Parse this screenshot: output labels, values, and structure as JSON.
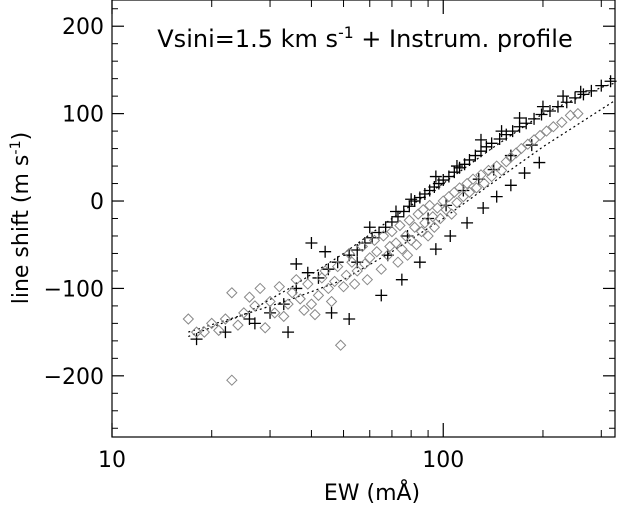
{
  "chart_data": {
    "type": "scatter",
    "title": "Vsini=1.5 km s⁻¹ + Instrum. profile",
    "xlabel": "EW (mÅ)",
    "ylabel": "line shift (m s⁻¹)",
    "xscale": "log",
    "xlim": [
      10,
      330
    ],
    "ylim": [
      -270,
      230
    ],
    "xticks": [
      10,
      100
    ],
    "xtick_labels": [
      "10",
      "100"
    ],
    "yticks": [
      -200,
      -100,
      0,
      100,
      200
    ],
    "ytick_labels": [
      "−200",
      "−100",
      "0",
      "100",
      "200"
    ],
    "grid": false,
    "legend": "none",
    "series": [
      {
        "marker": "plus",
        "color": "#000000",
        "points": [
          [
            18,
            -158
          ],
          [
            22,
            -150
          ],
          [
            27,
            -140
          ],
          [
            30,
            -128
          ],
          [
            33,
            -118
          ],
          [
            36,
            -100
          ],
          [
            39,
            -82
          ],
          [
            42,
            -88
          ],
          [
            45,
            -78
          ],
          [
            48,
            -70
          ],
          [
            52,
            -62
          ],
          [
            55,
            -56
          ],
          [
            58,
            -48
          ],
          [
            61,
            -42
          ],
          [
            64,
            -36
          ],
          [
            67,
            -30
          ],
          [
            70,
            -24
          ],
          [
            73,
            -18
          ],
          [
            76,
            -12
          ],
          [
            79,
            -6
          ],
          [
            82,
            0
          ],
          [
            85,
            4
          ],
          [
            88,
            8
          ],
          [
            91,
            12
          ],
          [
            94,
            16
          ],
          [
            97,
            20
          ],
          [
            100,
            24
          ],
          [
            104,
            28
          ],
          [
            108,
            33
          ],
          [
            112,
            38
          ],
          [
            116,
            42
          ],
          [
            120,
            47
          ],
          [
            125,
            52
          ],
          [
            130,
            57
          ],
          [
            135,
            62
          ],
          [
            140,
            66
          ],
          [
            148,
            71
          ],
          [
            155,
            76
          ],
          [
            162,
            80
          ],
          [
            170,
            85
          ],
          [
            178,
            89
          ],
          [
            188,
            94
          ],
          [
            198,
            99
          ],
          [
            210,
            103
          ],
          [
            222,
            108
          ],
          [
            236,
            113
          ],
          [
            250,
            118
          ],
          [
            265,
            122
          ],
          [
            280,
            126
          ],
          [
            300,
            132
          ],
          [
            320,
            137
          ],
          [
            40,
            -48
          ],
          [
            44,
            -58
          ],
          [
            36,
            -72
          ],
          [
            60,
            -30
          ],
          [
            72,
            -12
          ],
          [
            80,
            2
          ],
          [
            95,
            28
          ],
          [
            110,
            40
          ],
          [
            130,
            70
          ],
          [
            150,
            80
          ],
          [
            170,
            95
          ],
          [
            200,
            108
          ],
          [
            230,
            120
          ],
          [
            260,
            125
          ],
          [
            26,
            -135
          ],
          [
            34,
            -150
          ],
          [
            46,
            -128
          ],
          [
            52,
            -135
          ],
          [
            65,
            -108
          ],
          [
            75,
            -90
          ],
          [
            85,
            -70
          ],
          [
            95,
            -55
          ],
          [
            105,
            -40
          ],
          [
            118,
            -25
          ],
          [
            132,
            -8
          ],
          [
            145,
            5
          ],
          [
            160,
            18
          ],
          [
            176,
            32
          ],
          [
            195,
            44
          ],
          [
            55,
            -70
          ],
          [
            68,
            -62
          ],
          [
            78,
            -40
          ],
          [
            90,
            -20
          ],
          [
            102,
            -5
          ],
          [
            115,
            12
          ],
          [
            128,
            25
          ],
          [
            142,
            36
          ],
          [
            160,
            52
          ],
          [
            185,
            64
          ]
        ]
      },
      {
        "marker": "diamond",
        "color": "#888888",
        "points": [
          [
            17,
            -135
          ],
          [
            18,
            -150
          ],
          [
            19,
            -150
          ],
          [
            20,
            -140
          ],
          [
            21,
            -148
          ],
          [
            22,
            -135
          ],
          [
            23,
            -105
          ],
          [
            23,
            -205
          ],
          [
            24,
            -142
          ],
          [
            25,
            -128
          ],
          [
            26,
            -110
          ],
          [
            27,
            -120
          ],
          [
            28,
            -100
          ],
          [
            29,
            -145
          ],
          [
            30,
            -115
          ],
          [
            31,
            -128
          ],
          [
            32,
            -98
          ],
          [
            33,
            -132
          ],
          [
            34,
            -118
          ],
          [
            35,
            -105
          ],
          [
            36,
            -90
          ],
          [
            37,
            -112
          ],
          [
            38,
            -125
          ],
          [
            39,
            -95
          ],
          [
            40,
            -118
          ],
          [
            41,
            -130
          ],
          [
            42,
            -108
          ],
          [
            43,
            -88
          ],
          [
            44,
            -80
          ],
          [
            45,
            -100
          ],
          [
            46,
            -115
          ],
          [
            47,
            -92
          ],
          [
            48,
            -75
          ],
          [
            49,
            -165
          ],
          [
            50,
            -98
          ],
          [
            51,
            -85
          ],
          [
            52,
            -60
          ],
          [
            53,
            -70
          ],
          [
            54,
            -95
          ],
          [
            55,
            -80
          ],
          [
            57,
            -52
          ],
          [
            58,
            -72
          ],
          [
            59,
            -90
          ],
          [
            60,
            -65
          ],
          [
            62,
            -45
          ],
          [
            63,
            -58
          ],
          [
            65,
            -78
          ],
          [
            66,
            -40
          ],
          [
            68,
            -62
          ],
          [
            69,
            -52
          ],
          [
            70,
            -35
          ],
          [
            72,
            -48
          ],
          [
            73,
            -70
          ],
          [
            74,
            -28
          ],
          [
            75,
            -55
          ],
          [
            77,
            -40
          ],
          [
            78,
            -62
          ],
          [
            79,
            -22
          ],
          [
            80,
            -45
          ],
          [
            82,
            -30
          ],
          [
            83,
            -50
          ],
          [
            84,
            -15
          ],
          [
            86,
            -35
          ],
          [
            87,
            -10
          ],
          [
            88,
            -25
          ],
          [
            90,
            -40
          ],
          [
            91,
            -5
          ],
          [
            93,
            -18
          ],
          [
            94,
            -30
          ],
          [
            96,
            -8
          ],
          [
            98,
            -20
          ],
          [
            100,
            0
          ],
          [
            102,
            -10
          ],
          [
            104,
            5
          ],
          [
            106,
            -15
          ],
          [
            108,
            10
          ],
          [
            110,
            -2
          ],
          [
            112,
            15
          ],
          [
            115,
            5
          ],
          [
            118,
            20
          ],
          [
            120,
            10
          ],
          [
            123,
            25
          ],
          [
            126,
            15
          ],
          [
            130,
            30
          ],
          [
            133,
            20
          ],
          [
            137,
            35
          ],
          [
            140,
            28
          ],
          [
            145,
            40
          ],
          [
            150,
            35
          ],
          [
            155,
            45
          ],
          [
            160,
            50
          ],
          [
            166,
            55
          ],
          [
            172,
            60
          ],
          [
            180,
            65
          ],
          [
            188,
            70
          ],
          [
            196,
            75
          ],
          [
            205,
            80
          ],
          [
            215,
            85
          ],
          [
            228,
            90
          ],
          [
            242,
            98
          ],
          [
            255,
            100
          ]
        ]
      }
    ],
    "fit_curves": [
      {
        "style": "dotted",
        "x": [
          17,
          25,
          35,
          50,
          70,
          100,
          140,
          200,
          300,
          330
        ],
        "y": [
          -155,
          -130,
          -98,
          -60,
          -20,
          20,
          60,
          100,
          130,
          135
        ]
      },
      {
        "style": "dotted",
        "x": [
          17,
          25,
          35,
          50,
          70,
          100,
          140,
          200,
          300,
          330
        ],
        "y": [
          -150,
          -130,
          -112,
          -90,
          -58,
          -20,
          20,
          62,
          105,
          115
        ]
      }
    ]
  }
}
